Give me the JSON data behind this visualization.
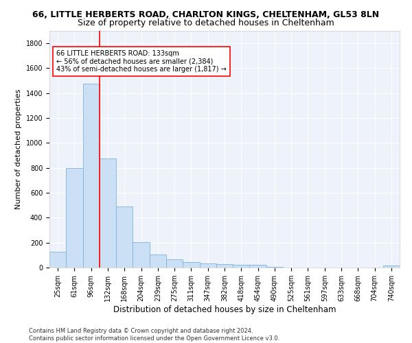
{
  "title1": "66, LITTLE HERBERTS ROAD, CHARLTON KINGS, CHELTENHAM, GL53 8LN",
  "title2": "Size of property relative to detached houses in Cheltenham",
  "xlabel": "Distribution of detached houses by size in Cheltenham",
  "ylabel": "Number of detached properties",
  "footnote": "Contains HM Land Registry data © Crown copyright and database right 2024.\nContains public sector information licensed under the Open Government Licence v3.0.",
  "categories": [
    "25sqm",
    "61sqm",
    "96sqm",
    "132sqm",
    "168sqm",
    "204sqm",
    "239sqm",
    "275sqm",
    "311sqm",
    "347sqm",
    "382sqm",
    "418sqm",
    "454sqm",
    "490sqm",
    "525sqm",
    "561sqm",
    "597sqm",
    "633sqm",
    "668sqm",
    "704sqm",
    "740sqm"
  ],
  "values": [
    125,
    800,
    1475,
    875,
    490,
    205,
    105,
    65,
    45,
    35,
    25,
    20,
    20,
    5,
    0,
    0,
    0,
    0,
    0,
    0,
    15
  ],
  "bar_color": "#cce0f5",
  "bar_edge_color": "#7fb3d9",
  "vline_color": "red",
  "annotation_text": "66 LITTLE HERBERTS ROAD: 133sqm\n← 56% of detached houses are smaller (2,384)\n43% of semi-detached houses are larger (1,817) →",
  "annotation_box_color": "white",
  "annotation_box_edge": "red",
  "ylim": [
    0,
    1900
  ],
  "yticks": [
    0,
    200,
    400,
    600,
    800,
    1000,
    1200,
    1400,
    1600,
    1800
  ],
  "background_color": "#eef2fa",
  "grid_color": "white",
  "title1_fontsize": 9,
  "title2_fontsize": 9,
  "xlabel_fontsize": 8.5,
  "ylabel_fontsize": 8,
  "tick_fontsize": 7,
  "annotation_fontsize": 7,
  "footnote_fontsize": 6
}
